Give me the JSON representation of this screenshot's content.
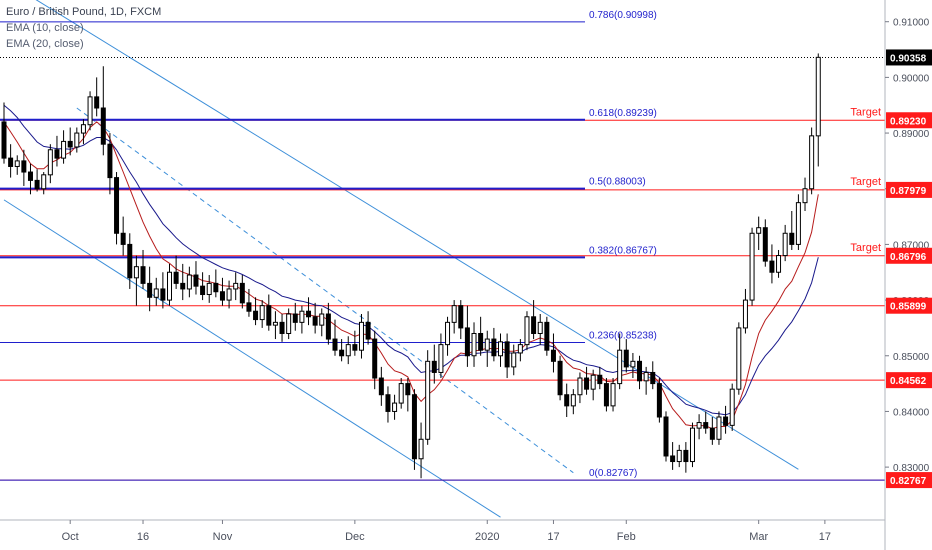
{
  "legend": {
    "title": "Euro / British Pound, 1D, FXCM",
    "ema10": "EMA (10, close)",
    "ema20": "EMA (20, close)"
  },
  "colors": {
    "up": "#ffffff",
    "down": "#000000",
    "ema10": "#b71c1c",
    "ema20": "#1a1a8c",
    "fib": "#1f1fcc",
    "level": "#ff1a1a",
    "channel": "#3d8fd9",
    "price_box": "#000000",
    "level_box": "#ff1a1a"
  },
  "chart_data": {
    "type": "candlestick",
    "ylim": [
      0.8205,
      0.9139
    ],
    "y_ticks": [
      "0.91000",
      "0.90000",
      "0.89000",
      "0.88000",
      "0.87000",
      "0.86000",
      "0.85000",
      "0.84000",
      "0.83000"
    ],
    "y_tick_values": [
      0.91,
      0.9,
      0.89,
      0.88,
      0.87,
      0.86,
      0.85,
      0.84,
      0.83
    ],
    "x_ticks": [
      {
        "label": "Oct",
        "index": 10
      },
      {
        "label": "16",
        "index": 21
      },
      {
        "label": "Nov",
        "index": 33
      },
      {
        "label": "Dec",
        "index": 53
      },
      {
        "label": "2020",
        "index": 73
      },
      {
        "label": "17",
        "index": 83
      },
      {
        "label": "Feb",
        "index": 94
      },
      {
        "label": "Mar",
        "index": 114
      },
      {
        "label": "17",
        "index": 124
      }
    ],
    "last_price": {
      "value": 0.90358,
      "label": "0.90358"
    },
    "fib_levels": [
      {
        "label": "0.786(0.90998)",
        "value": 0.90998
      },
      {
        "label": "0.618(0.89239)",
        "value": 0.89239
      },
      {
        "label": "0.5(0.88003)",
        "value": 0.88003
      },
      {
        "label": "0.382(0.86767)",
        "value": 0.86767
      },
      {
        "label": "0.236(0.85238)",
        "value": 0.85238
      },
      {
        "label": "0(0.82767)",
        "value": 0.82767
      }
    ],
    "levels": [
      {
        "value": 0.8923,
        "label": "0.89230",
        "annotation": "Target"
      },
      {
        "value": 0.87979,
        "label": "0.87979",
        "annotation": "Target"
      },
      {
        "value": 0.86796,
        "label": "0.86796",
        "annotation": "Target"
      },
      {
        "value": 0.85899,
        "label": "0.85899",
        "annotation": ""
      },
      {
        "value": 0.84562,
        "label": "0.84562",
        "annotation": ""
      },
      {
        "value": 0.82767,
        "label": "0.82767",
        "annotation": ""
      }
    ],
    "channel_lines": [
      {
        "style": "solid",
        "from": {
          "index": 0,
          "value": 0.9175
        },
        "to": {
          "index": 120,
          "value": 0.8296
        }
      },
      {
        "style": "solid",
        "from": {
          "index": 0,
          "value": 0.878
        },
        "to": {
          "index": 75,
          "value": 0.821
        }
      },
      {
        "style": "dashed",
        "from": {
          "index": 11,
          "value": 0.8945
        },
        "to": {
          "index": 86,
          "value": 0.829
        }
      }
    ],
    "candles": [
      {
        "o": 0.892,
        "h": 0.8955,
        "l": 0.8845,
        "c": 0.8855
      },
      {
        "o": 0.8855,
        "h": 0.888,
        "l": 0.882,
        "c": 0.884
      },
      {
        "o": 0.884,
        "h": 0.886,
        "l": 0.8825,
        "c": 0.885
      },
      {
        "o": 0.885,
        "h": 0.887,
        "l": 0.8805,
        "c": 0.883
      },
      {
        "o": 0.883,
        "h": 0.8845,
        "l": 0.879,
        "c": 0.8815
      },
      {
        "o": 0.8815,
        "h": 0.8835,
        "l": 0.8795,
        "c": 0.88
      },
      {
        "o": 0.88,
        "h": 0.883,
        "l": 0.879,
        "c": 0.8825
      },
      {
        "o": 0.8825,
        "h": 0.888,
        "l": 0.881,
        "c": 0.887
      },
      {
        "o": 0.887,
        "h": 0.8895,
        "l": 0.884,
        "c": 0.8855
      },
      {
        "o": 0.8855,
        "h": 0.8905,
        "l": 0.8845,
        "c": 0.8885
      },
      {
        "o": 0.8885,
        "h": 0.891,
        "l": 0.886,
        "c": 0.8875
      },
      {
        "o": 0.8875,
        "h": 0.891,
        "l": 0.8865,
        "c": 0.89
      },
      {
        "o": 0.89,
        "h": 0.8925,
        "l": 0.888,
        "c": 0.8915
      },
      {
        "o": 0.8915,
        "h": 0.8975,
        "l": 0.8905,
        "c": 0.8965
      },
      {
        "o": 0.8965,
        "h": 0.9,
        "l": 0.893,
        "c": 0.8945
      },
      {
        "o": 0.8945,
        "h": 0.902,
        "l": 0.886,
        "c": 0.888
      },
      {
        "o": 0.888,
        "h": 0.89,
        "l": 0.879,
        "c": 0.882
      },
      {
        "o": 0.882,
        "h": 0.883,
        "l": 0.87,
        "c": 0.872
      },
      {
        "o": 0.872,
        "h": 0.875,
        "l": 0.868,
        "c": 0.87
      },
      {
        "o": 0.87,
        "h": 0.872,
        "l": 0.862,
        "c": 0.864
      },
      {
        "o": 0.864,
        "h": 0.868,
        "l": 0.859,
        "c": 0.866
      },
      {
        "o": 0.866,
        "h": 0.869,
        "l": 0.862,
        "c": 0.863
      },
      {
        "o": 0.863,
        "h": 0.866,
        "l": 0.858,
        "c": 0.8605
      },
      {
        "o": 0.8605,
        "h": 0.864,
        "l": 0.859,
        "c": 0.862
      },
      {
        "o": 0.862,
        "h": 0.865,
        "l": 0.8585,
        "c": 0.86
      },
      {
        "o": 0.86,
        "h": 0.8665,
        "l": 0.859,
        "c": 0.865
      },
      {
        "o": 0.865,
        "h": 0.868,
        "l": 0.862,
        "c": 0.863
      },
      {
        "o": 0.863,
        "h": 0.8665,
        "l": 0.86,
        "c": 0.862
      },
      {
        "o": 0.862,
        "h": 0.866,
        "l": 0.8605,
        "c": 0.8645
      },
      {
        "o": 0.8645,
        "h": 0.867,
        "l": 0.861,
        "c": 0.8625
      },
      {
        "o": 0.8625,
        "h": 0.865,
        "l": 0.86,
        "c": 0.861
      },
      {
        "o": 0.861,
        "h": 0.8645,
        "l": 0.8595,
        "c": 0.863
      },
      {
        "o": 0.863,
        "h": 0.8655,
        "l": 0.8605,
        "c": 0.8615
      },
      {
        "o": 0.8615,
        "h": 0.864,
        "l": 0.859,
        "c": 0.86
      },
      {
        "o": 0.86,
        "h": 0.8635,
        "l": 0.8585,
        "c": 0.862
      },
      {
        "o": 0.862,
        "h": 0.865,
        "l": 0.86,
        "c": 0.863
      },
      {
        "o": 0.863,
        "h": 0.8645,
        "l": 0.8585,
        "c": 0.8595
      },
      {
        "o": 0.8595,
        "h": 0.862,
        "l": 0.857,
        "c": 0.858
      },
      {
        "o": 0.858,
        "h": 0.8605,
        "l": 0.8555,
        "c": 0.8565
      },
      {
        "o": 0.8565,
        "h": 0.86,
        "l": 0.855,
        "c": 0.859
      },
      {
        "o": 0.859,
        "h": 0.861,
        "l": 0.8545,
        "c": 0.8555
      },
      {
        "o": 0.8555,
        "h": 0.858,
        "l": 0.853,
        "c": 0.856
      },
      {
        "o": 0.856,
        "h": 0.8575,
        "l": 0.8525,
        "c": 0.854
      },
      {
        "o": 0.854,
        "h": 0.8585,
        "l": 0.853,
        "c": 0.8575
      },
      {
        "o": 0.8575,
        "h": 0.8595,
        "l": 0.8545,
        "c": 0.856
      },
      {
        "o": 0.856,
        "h": 0.859,
        "l": 0.854,
        "c": 0.858
      },
      {
        "o": 0.858,
        "h": 0.8605,
        "l": 0.8555,
        "c": 0.857
      },
      {
        "o": 0.857,
        "h": 0.8595,
        "l": 0.854,
        "c": 0.8555
      },
      {
        "o": 0.8555,
        "h": 0.8585,
        "l": 0.8535,
        "c": 0.8575
      },
      {
        "o": 0.8575,
        "h": 0.8595,
        "l": 0.852,
        "c": 0.853
      },
      {
        "o": 0.853,
        "h": 0.8565,
        "l": 0.85,
        "c": 0.851
      },
      {
        "o": 0.851,
        "h": 0.853,
        "l": 0.849,
        "c": 0.85
      },
      {
        "o": 0.85,
        "h": 0.8535,
        "l": 0.8485,
        "c": 0.852
      },
      {
        "o": 0.852,
        "h": 0.8545,
        "l": 0.85,
        "c": 0.851
      },
      {
        "o": 0.851,
        "h": 0.8575,
        "l": 0.8495,
        "c": 0.856
      },
      {
        "o": 0.856,
        "h": 0.858,
        "l": 0.852,
        "c": 0.853
      },
      {
        "o": 0.853,
        "h": 0.8545,
        "l": 0.844,
        "c": 0.846
      },
      {
        "o": 0.846,
        "h": 0.848,
        "l": 0.841,
        "c": 0.843
      },
      {
        "o": 0.843,
        "h": 0.8445,
        "l": 0.838,
        "c": 0.84
      },
      {
        "o": 0.84,
        "h": 0.843,
        "l": 0.8385,
        "c": 0.8415
      },
      {
        "o": 0.8415,
        "h": 0.846,
        "l": 0.8405,
        "c": 0.845
      },
      {
        "o": 0.845,
        "h": 0.846,
        "l": 0.84,
        "c": 0.843
      },
      {
        "o": 0.843,
        "h": 0.844,
        "l": 0.8295,
        "c": 0.8315
      },
      {
        "o": 0.8315,
        "h": 0.838,
        "l": 0.828,
        "c": 0.835
      },
      {
        "o": 0.835,
        "h": 0.851,
        "l": 0.834,
        "c": 0.849
      },
      {
        "o": 0.849,
        "h": 0.852,
        "l": 0.845,
        "c": 0.847
      },
      {
        "o": 0.847,
        "h": 0.854,
        "l": 0.846,
        "c": 0.852
      },
      {
        "o": 0.852,
        "h": 0.857,
        "l": 0.85,
        "c": 0.856
      },
      {
        "o": 0.856,
        "h": 0.86,
        "l": 0.854,
        "c": 0.859
      },
      {
        "o": 0.859,
        "h": 0.86,
        "l": 0.853,
        "c": 0.855
      },
      {
        "o": 0.855,
        "h": 0.859,
        "l": 0.848,
        "c": 0.85
      },
      {
        "o": 0.85,
        "h": 0.856,
        "l": 0.848,
        "c": 0.854
      },
      {
        "o": 0.854,
        "h": 0.857,
        "l": 0.85,
        "c": 0.851
      },
      {
        "o": 0.851,
        "h": 0.8545,
        "l": 0.848,
        "c": 0.853
      },
      {
        "o": 0.853,
        "h": 0.855,
        "l": 0.849,
        "c": 0.85
      },
      {
        "o": 0.85,
        "h": 0.854,
        "l": 0.848,
        "c": 0.8525
      },
      {
        "o": 0.8525,
        "h": 0.854,
        "l": 0.846,
        "c": 0.848
      },
      {
        "o": 0.848,
        "h": 0.852,
        "l": 0.8465,
        "c": 0.8505
      },
      {
        "o": 0.8505,
        "h": 0.853,
        "l": 0.849,
        "c": 0.852
      },
      {
        "o": 0.852,
        "h": 0.858,
        "l": 0.851,
        "c": 0.857
      },
      {
        "o": 0.857,
        "h": 0.86,
        "l": 0.853,
        "c": 0.854
      },
      {
        "o": 0.854,
        "h": 0.8575,
        "l": 0.852,
        "c": 0.856
      },
      {
        "o": 0.856,
        "h": 0.857,
        "l": 0.85,
        "c": 0.851
      },
      {
        "o": 0.851,
        "h": 0.854,
        "l": 0.847,
        "c": 0.849
      },
      {
        "o": 0.849,
        "h": 0.85,
        "l": 0.842,
        "c": 0.843
      },
      {
        "o": 0.843,
        "h": 0.845,
        "l": 0.839,
        "c": 0.841
      },
      {
        "o": 0.841,
        "h": 0.844,
        "l": 0.8395,
        "c": 0.843
      },
      {
        "o": 0.843,
        "h": 0.847,
        "l": 0.8415,
        "c": 0.846
      },
      {
        "o": 0.846,
        "h": 0.848,
        "l": 0.843,
        "c": 0.844
      },
      {
        "o": 0.844,
        "h": 0.8475,
        "l": 0.842,
        "c": 0.8465
      },
      {
        "o": 0.8465,
        "h": 0.848,
        "l": 0.844,
        "c": 0.845
      },
      {
        "o": 0.845,
        "h": 0.846,
        "l": 0.84,
        "c": 0.841
      },
      {
        "o": 0.841,
        "h": 0.846,
        "l": 0.84,
        "c": 0.845
      },
      {
        "o": 0.845,
        "h": 0.854,
        "l": 0.844,
        "c": 0.851
      },
      {
        "o": 0.851,
        "h": 0.853,
        "l": 0.847,
        "c": 0.848
      },
      {
        "o": 0.848,
        "h": 0.8505,
        "l": 0.846,
        "c": 0.849
      },
      {
        "o": 0.849,
        "h": 0.85,
        "l": 0.844,
        "c": 0.8455
      },
      {
        "o": 0.8455,
        "h": 0.848,
        "l": 0.843,
        "c": 0.847
      },
      {
        "o": 0.847,
        "h": 0.849,
        "l": 0.844,
        "c": 0.845
      },
      {
        "o": 0.845,
        "h": 0.846,
        "l": 0.838,
        "c": 0.839
      },
      {
        "o": 0.839,
        "h": 0.84,
        "l": 0.831,
        "c": 0.832
      },
      {
        "o": 0.832,
        "h": 0.8345,
        "l": 0.8295,
        "c": 0.831
      },
      {
        "o": 0.831,
        "h": 0.834,
        "l": 0.83,
        "c": 0.833
      },
      {
        "o": 0.833,
        "h": 0.8345,
        "l": 0.829,
        "c": 0.831
      },
      {
        "o": 0.831,
        "h": 0.838,
        "l": 0.83,
        "c": 0.837
      },
      {
        "o": 0.837,
        "h": 0.8395,
        "l": 0.835,
        "c": 0.838
      },
      {
        "o": 0.838,
        "h": 0.84,
        "l": 0.836,
        "c": 0.837
      },
      {
        "o": 0.837,
        "h": 0.839,
        "l": 0.834,
        "c": 0.835
      },
      {
        "o": 0.835,
        "h": 0.84,
        "l": 0.834,
        "c": 0.839
      },
      {
        "o": 0.839,
        "h": 0.841,
        "l": 0.836,
        "c": 0.8375
      },
      {
        "o": 0.8375,
        "h": 0.845,
        "l": 0.8365,
        "c": 0.844
      },
      {
        "o": 0.844,
        "h": 0.856,
        "l": 0.843,
        "c": 0.855
      },
      {
        "o": 0.855,
        "h": 0.862,
        "l": 0.854,
        "c": 0.86
      },
      {
        "o": 0.86,
        "h": 0.873,
        "l": 0.859,
        "c": 0.872
      },
      {
        "o": 0.872,
        "h": 0.875,
        "l": 0.869,
        "c": 0.873
      },
      {
        "o": 0.873,
        "h": 0.8745,
        "l": 0.866,
        "c": 0.867
      },
      {
        "o": 0.867,
        "h": 0.87,
        "l": 0.863,
        "c": 0.865
      },
      {
        "o": 0.865,
        "h": 0.869,
        "l": 0.864,
        "c": 0.868
      },
      {
        "o": 0.868,
        "h": 0.8735,
        "l": 0.867,
        "c": 0.872
      },
      {
        "o": 0.872,
        "h": 0.876,
        "l": 0.869,
        "c": 0.87
      },
      {
        "o": 0.87,
        "h": 0.879,
        "l": 0.869,
        "c": 0.8775
      },
      {
        "o": 0.8775,
        "h": 0.882,
        "l": 0.876,
        "c": 0.88
      },
      {
        "o": 0.88,
        "h": 0.891,
        "l": 0.879,
        "c": 0.8895
      },
      {
        "o": 0.8895,
        "h": 0.9043,
        "l": 0.884,
        "c": 0.9036
      }
    ],
    "ema10": [
      0.892,
      0.8902,
      0.8884,
      0.8864,
      0.8845,
      0.8836,
      0.8836,
      0.8846,
      0.8852,
      0.886,
      0.8865,
      0.8877,
      0.889,
      0.891,
      0.892,
      0.891,
      0.889,
      0.886,
      0.883,
      0.88,
      0.877,
      0.874,
      0.8715,
      0.8692,
      0.8674,
      0.8666,
      0.8656,
      0.865,
      0.8646,
      0.8641,
      0.8635,
      0.8633,
      0.863,
      0.8626,
      0.8625,
      0.8625,
      0.8619,
      0.8611,
      0.8602,
      0.8598,
      0.859,
      0.8584,
      0.8575,
      0.8576,
      0.8574,
      0.8575,
      0.8574,
      0.8571,
      0.8571,
      0.8564,
      0.8555,
      0.8546,
      0.8541,
      0.8535,
      0.8539,
      0.8538,
      0.8523,
      0.8505,
      0.8485,
      0.8473,
      0.8469,
      0.8462,
      0.8433,
      0.8418,
      0.843,
      0.8439,
      0.8454,
      0.8474,
      0.8495,
      0.8505,
      0.8503,
      0.8509,
      0.851,
      0.8514,
      0.8512,
      0.8514,
      0.8508,
      0.8508,
      0.8511,
      0.8523,
      0.8527,
      0.8532,
      0.8528,
      0.8521,
      0.8504,
      0.8488,
      0.8478,
      0.8475,
      0.8468,
      0.8467,
      0.8464,
      0.8454,
      0.8453,
      0.8464,
      0.8467,
      0.8471,
      0.8468,
      0.8468,
      0.8465,
      0.8451,
      0.8427,
      0.8405,
      0.8391,
      0.8376,
      0.8374,
      0.8375,
      0.8374,
      0.8369,
      0.8373,
      0.8373,
      0.8384,
      0.8414,
      0.8448,
      0.8498,
      0.854,
      0.8564,
      0.858,
      0.8598,
      0.862,
      0.8634,
      0.866,
      0.8685,
      0.8722,
      0.879
    ],
    "ema20": [
      0.895,
      0.894,
      0.8928,
      0.8912,
      0.8898,
      0.8884,
      0.8876,
      0.8874,
      0.8872,
      0.8872,
      0.8871,
      0.8874,
      0.8878,
      0.8886,
      0.8892,
      0.8892,
      0.8885,
      0.887,
      0.885,
      0.883,
      0.8812,
      0.8791,
      0.8772,
      0.8755,
      0.8737,
      0.8725,
      0.8712,
      0.8701,
      0.8692,
      0.8684,
      0.8676,
      0.867,
      0.8664,
      0.8658,
      0.8654,
      0.8651,
      0.8646,
      0.864,
      0.8633,
      0.8628,
      0.8621,
      0.8615,
      0.8607,
      0.8604,
      0.86,
      0.8598,
      0.8595,
      0.8591,
      0.859,
      0.8584,
      0.8577,
      0.8569,
      0.8564,
      0.8558,
      0.8556,
      0.8553,
      0.8543,
      0.8532,
      0.8519,
      0.851,
      0.8505,
      0.8498,
      0.8482,
      0.847,
      0.8472,
      0.8473,
      0.8478,
      0.8486,
      0.8496,
      0.8501,
      0.8501,
      0.8504,
      0.8505,
      0.8507,
      0.8506,
      0.8508,
      0.8505,
      0.8505,
      0.8506,
      0.8513,
      0.8516,
      0.852,
      0.8519,
      0.8516,
      0.8508,
      0.8499,
      0.8492,
      0.8489,
      0.8484,
      0.8482,
      0.8479,
      0.8472,
      0.847,
      0.8473,
      0.8473,
      0.8474,
      0.8472,
      0.8471,
      0.8469,
      0.8461,
      0.8447,
      0.8434,
      0.8424,
      0.8413,
      0.8409,
      0.8406,
      0.8402,
      0.8397,
      0.8396,
      0.8394,
      0.8398,
      0.8412,
      0.843,
      0.8458,
      0.8483,
      0.85,
      0.8513,
      0.8528,
      0.8546,
      0.8561,
      0.8581,
      0.8602,
      0.8631,
      0.8677
    ]
  }
}
